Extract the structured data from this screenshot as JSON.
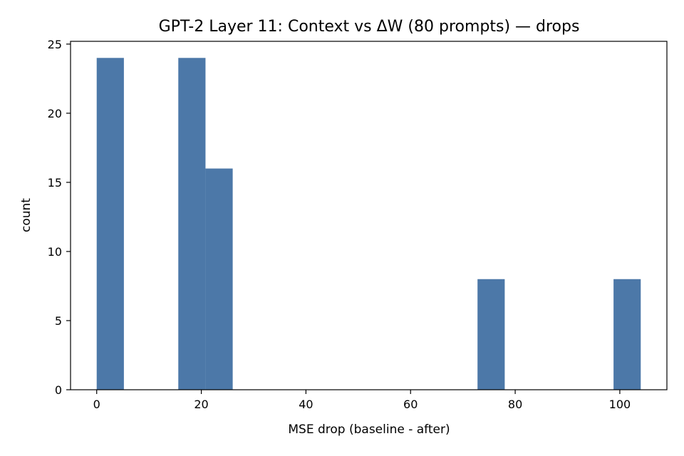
{
  "chart_data": {
    "type": "bar",
    "title": "GPT-2 Layer 11: Context vs ΔW (80 prompts) — drops",
    "xlabel": "MSE drop (baseline - after)",
    "ylabel": "count",
    "xlim": [
      -5,
      109
    ],
    "ylim": [
      0,
      25.2
    ],
    "xticks": [
      0,
      20,
      40,
      60,
      80,
      100
    ],
    "yticks": [
      0,
      5,
      10,
      15,
      20,
      25
    ],
    "grid": false,
    "bar_color": "#4c78a8",
    "bins": [
      {
        "x0": 0.0,
        "x1": 5.2,
        "count": 24
      },
      {
        "x0": 15.6,
        "x1": 20.8,
        "count": 24
      },
      {
        "x0": 20.8,
        "x1": 26.0,
        "count": 16
      },
      {
        "x0": 72.8,
        "x1": 78.0,
        "count": 8
      },
      {
        "x0": 98.8,
        "x1": 104.0,
        "count": 8
      }
    ]
  }
}
